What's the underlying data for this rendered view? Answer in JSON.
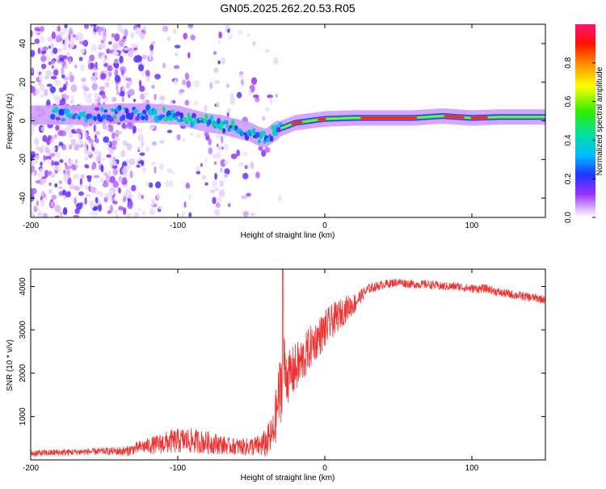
{
  "title": "GN05.2025.262.20.53.R05",
  "chart_data": [
    {
      "type": "heatmap",
      "title": "GN05.2025.262.20.53.R05",
      "xlabel": "Height of straight line (km)",
      "ylabel": "Frequency (Hz)",
      "xlim": [
        -200,
        150
      ],
      "ylim": [
        -50,
        50
      ],
      "xticks": [
        -200,
        -100,
        0,
        100
      ],
      "yticks": [
        -40,
        -20,
        0,
        20,
        40
      ],
      "colorbar": {
        "label": "Normalized spectral amplitude",
        "range": [
          0,
          1
        ],
        "ticks": [
          0.0,
          0.2,
          0.4,
          0.6,
          0.8
        ],
        "tick_labels": [
          "0.0",
          "0.2",
          "0.4",
          "0.6",
          "0.8"
        ]
      },
      "ridge": {
        "x": [
          -200,
          -180,
          -160,
          -140,
          -120,
          -100,
          -90,
          -80,
          -70,
          -60,
          -50,
          -45,
          -40,
          -35,
          -30,
          -20,
          -10,
          0,
          20,
          40,
          60,
          80,
          100,
          120,
          150
        ],
        "frequency": [
          3,
          3,
          3,
          4,
          4,
          3,
          1,
          -1,
          -2,
          -4,
          -6,
          -8,
          -9,
          -6,
          -4,
          -1,
          0,
          1,
          1.5,
          1.5,
          1.5,
          2.5,
          1.5,
          2,
          2
        ]
      }
    },
    {
      "type": "line",
      "xlabel": "Height of straight line (km)",
      "ylabel": "SNR (10 * v/v)",
      "xlim": [
        -200,
        150
      ],
      "ylim": [
        0,
        4400
      ],
      "xticks": [
        -200,
        -100,
        0,
        100
      ],
      "yticks": [
        1000,
        2000,
        3000,
        4000
      ],
      "color": "#ee3333",
      "envelope": {
        "x": [
          -200,
          -150,
          -135,
          -125,
          -115,
          -105,
          -95,
          -85,
          -75,
          -65,
          -55,
          -45,
          -40,
          -35,
          -32,
          -30,
          -28,
          -25,
          -20,
          -15,
          -10,
          -5,
          0,
          5,
          10,
          15,
          20,
          25,
          30,
          40,
          50,
          60,
          70,
          80,
          90,
          100,
          110,
          120,
          130,
          140,
          150
        ],
        "mean": [
          150,
          200,
          200,
          300,
          350,
          420,
          450,
          420,
          380,
          320,
          300,
          320,
          380,
          600,
          1300,
          1700,
          2200,
          1900,
          2100,
          2300,
          2600,
          2800,
          3000,
          3200,
          3350,
          3500,
          3600,
          3800,
          3950,
          4050,
          4100,
          4050,
          4050,
          4000,
          4000,
          3950,
          3950,
          3850,
          3800,
          3750,
          3700
        ],
        "noise": [
          80,
          80,
          120,
          150,
          220,
          280,
          300,
          280,
          250,
          200,
          200,
          250,
          350,
          500,
          700,
          900,
          800,
          600,
          600,
          550,
          500,
          450,
          450,
          400,
          350,
          300,
          250,
          150,
          120,
          100,
          100,
          100,
          100,
          100,
          100,
          100,
          100,
          100,
          100,
          100,
          100
        ]
      }
    }
  ],
  "colors": {
    "line": "#ee3333",
    "axis": "#000000"
  }
}
